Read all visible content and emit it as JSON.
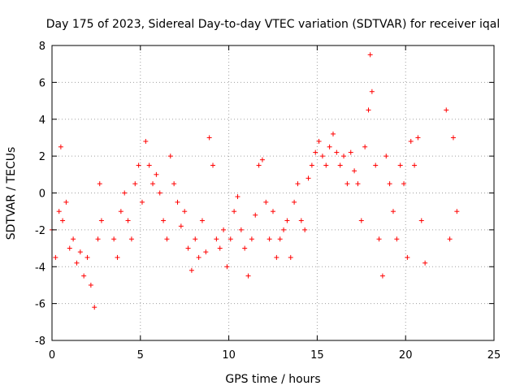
{
  "chart_data": {
    "type": "scatter",
    "title": "Day 175 of 2023, Sidereal Day-to-day VTEC variation (SDTVAR) for receiver iqal",
    "xlabel": "GPS time / hours",
    "ylabel": "SDTVAR / TECUs",
    "xlim": [
      0,
      25
    ],
    "ylim": [
      -8,
      8
    ],
    "xticks": [
      "0",
      "5",
      "10",
      "15",
      "20",
      "25"
    ],
    "yticks": [
      "-8",
      "-6",
      "-4",
      "-2",
      "0",
      "2",
      "4",
      "6",
      "8"
    ],
    "grid": true,
    "marker": "+",
    "color": "#ff0000",
    "series": [
      {
        "name": "SDTVAR",
        "x": [
          0.0,
          0.2,
          0.4,
          0.5,
          0.6,
          0.8,
          1.0,
          1.2,
          1.4,
          1.6,
          1.8,
          2.0,
          2.2,
          2.4,
          2.6,
          2.7,
          2.8,
          3.5,
          3.7,
          3.9,
          4.1,
          4.3,
          4.5,
          4.7,
          4.9,
          5.1,
          5.3,
          5.5,
          5.7,
          5.9,
          6.1,
          6.3,
          6.5,
          6.7,
          6.9,
          7.1,
          7.3,
          7.5,
          7.7,
          7.9,
          8.1,
          8.3,
          8.5,
          8.7,
          8.9,
          9.1,
          9.3,
          9.5,
          9.7,
          9.9,
          10.1,
          10.3,
          10.5,
          10.7,
          10.9,
          11.1,
          11.3,
          11.5,
          11.7,
          11.9,
          12.1,
          12.3,
          12.5,
          12.7,
          12.9,
          13.1,
          13.3,
          13.5,
          13.7,
          13.9,
          14.1,
          14.3,
          14.5,
          14.7,
          14.9,
          15.1,
          15.3,
          15.5,
          15.7,
          15.9,
          16.1,
          16.3,
          16.5,
          16.7,
          16.9,
          17.1,
          17.3,
          17.5,
          17.7,
          17.9,
          18.0,
          18.1,
          18.3,
          18.5,
          18.7,
          18.9,
          19.1,
          19.3,
          19.5,
          19.7,
          19.9,
          20.1,
          20.3,
          20.5,
          20.7,
          20.9,
          21.1,
          22.3,
          22.5,
          22.7,
          22.9
        ],
        "y": [
          -2.0,
          -3.5,
          -1.0,
          2.5,
          -1.5,
          -0.5,
          -3.0,
          -2.5,
          -3.8,
          -3.2,
          -4.5,
          -3.5,
          -5.0,
          -6.2,
          -2.5,
          0.5,
          -1.5,
          -2.5,
          -3.5,
          -1.0,
          0.0,
          -1.5,
          -2.5,
          0.5,
          1.5,
          -0.5,
          2.8,
          1.5,
          0.5,
          1.0,
          0.0,
          -1.5,
          -2.5,
          2.0,
          0.5,
          -0.5,
          -1.8,
          -1.0,
          -3.0,
          -4.2,
          -2.5,
          -3.5,
          -1.5,
          -3.2,
          3.0,
          1.5,
          -2.5,
          -3.0,
          -2.0,
          -4.0,
          -2.5,
          -1.0,
          -0.2,
          -2.0,
          -3.0,
          -4.5,
          -2.5,
          -1.2,
          1.5,
          1.8,
          -0.5,
          -2.5,
          -1.0,
          -3.5,
          -2.5,
          -2.0,
          -1.5,
          -3.5,
          -0.5,
          0.5,
          -1.5,
          -2.0,
          0.8,
          1.5,
          2.2,
          2.8,
          2.0,
          1.5,
          2.5,
          3.2,
          2.2,
          1.5,
          2.0,
          0.5,
          2.2,
          1.2,
          0.5,
          -1.5,
          2.5,
          4.5,
          7.5,
          5.5,
          1.5,
          -2.5,
          -4.5,
          2.0,
          0.5,
          -1.0,
          -2.5,
          1.5,
          0.5,
          -3.5,
          2.8,
          1.5,
          3.0,
          -1.5,
          -3.8,
          4.5,
          -2.5,
          3.0,
          -1.0
        ]
      }
    ]
  }
}
